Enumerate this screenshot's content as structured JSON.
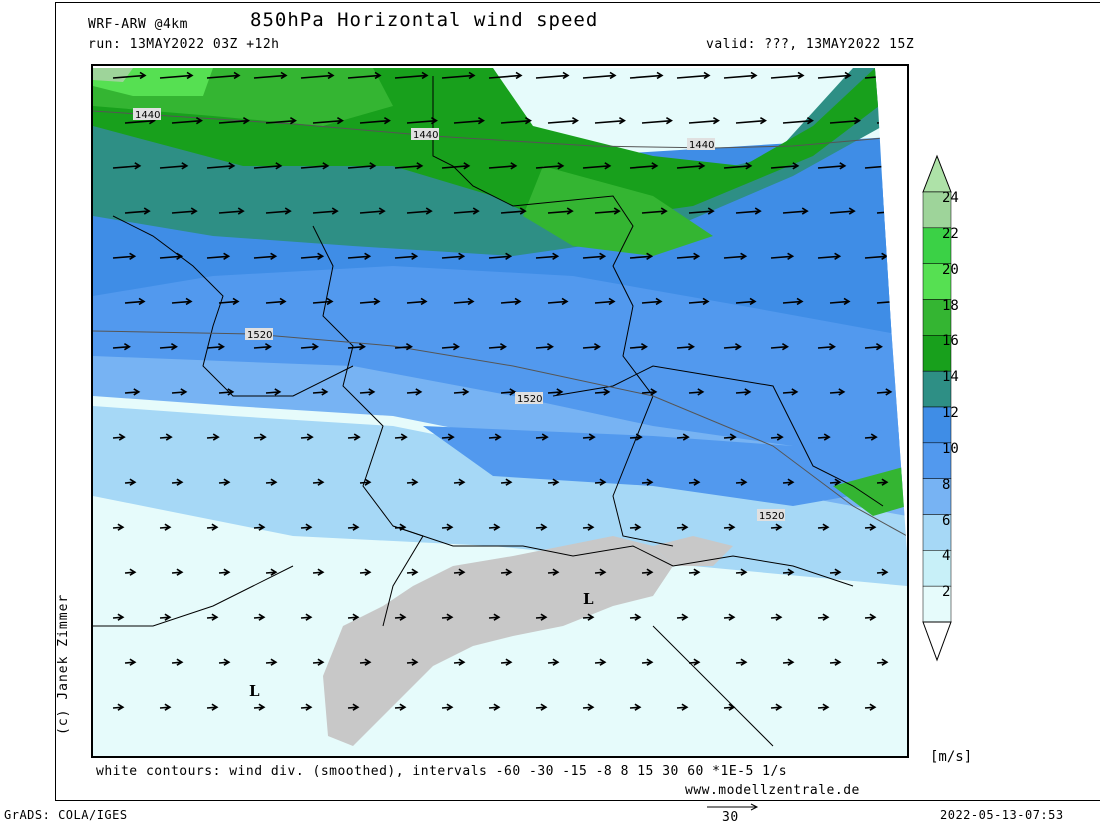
{
  "header": {
    "model": "WRF-ARW @4km",
    "title": "850hPa Horizontal wind speed",
    "run": "run: 13MAY2022 03Z +12h",
    "valid": "valid: ???, 13MAY2022 15Z"
  },
  "credit": "(c) Janek Zimmer",
  "footer": {
    "contours_note": "white contours: wind div. (smoothed), intervals -60 -30 -15 -8 8 15 30 60 *1E-5 1/s",
    "website": "www.modellzentrale.de",
    "software": "GrADS: COLA/IGES",
    "timestamp": "2022-05-13-07:53",
    "ref_vector_label": "30"
  },
  "map": {
    "contour_labels": [
      "1440",
      "1440",
      "1440",
      "1520",
      "1520",
      "1520"
    ],
    "pressure_markers": [
      "L",
      "L"
    ]
  },
  "colorbar": {
    "unit": "[m/s]",
    "levels": [
      "24",
      "22",
      "20",
      "18",
      "16",
      "14",
      "12",
      "10",
      "8",
      "6",
      "4",
      "2"
    ],
    "colors": [
      "#9ed49a",
      "#3bd146",
      "#56e052",
      "#34b532",
      "#18a01c",
      "#2e8f85",
      "#3f8de6",
      "#5299ee",
      "#77b3f3",
      "#a6d8f6",
      "#c8f0f8",
      "#e6fbfb"
    ],
    "cap_top": "#aee2a8",
    "cap_bottom": "#ffffff"
  },
  "colors": {
    "alps_gray": "#c8c8c8",
    "border": "#000000"
  }
}
